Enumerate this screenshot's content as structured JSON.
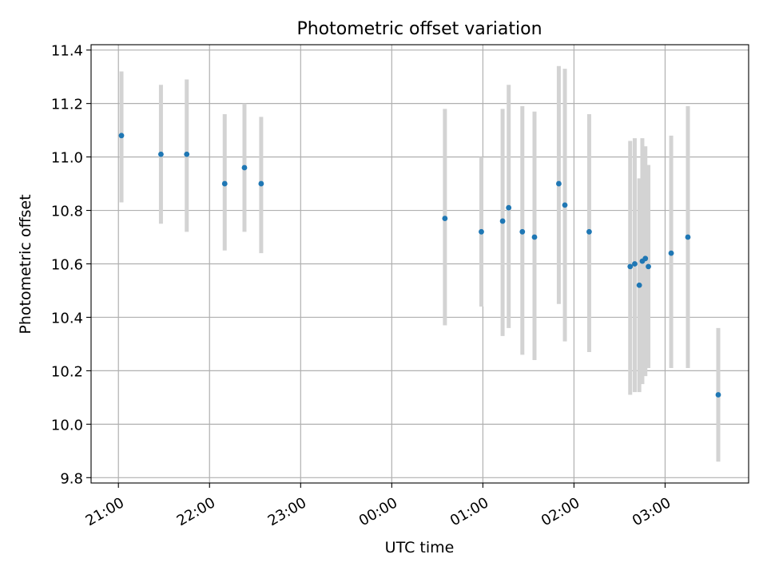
{
  "chart_data": {
    "type": "scatter",
    "title": "Photometric offset variation",
    "xlabel": "UTC time",
    "ylabel": "Photometric offset",
    "x_tick_labels": [
      "21:00",
      "22:00",
      "23:00",
      "00:00",
      "01:00",
      "02:00",
      "03:00"
    ],
    "x_tick_minutes": [
      0,
      60,
      120,
      180,
      240,
      300,
      360
    ],
    "y_ticks": [
      9.8,
      10.0,
      10.2,
      10.4,
      10.6,
      10.8,
      11.0,
      11.2,
      11.4
    ],
    "y_tick_labels": [
      "9.8",
      "10.0",
      "10.2",
      "10.4",
      "10.6",
      "10.8",
      "11.0",
      "11.2",
      "11.4"
    ],
    "xlim_minutes": [
      -18,
      415
    ],
    "ylim": [
      9.78,
      11.42
    ],
    "grid": true,
    "colors": {
      "point": "#1f77b4",
      "errorbar": "#d3d3d3",
      "grid": "#b0b0b0"
    },
    "points": [
      {
        "t": "21:02",
        "m": 2,
        "y": 11.08,
        "lo": 10.83,
        "hi": 11.32
      },
      {
        "t": "21:28",
        "m": 28,
        "y": 11.01,
        "lo": 10.75,
        "hi": 11.27
      },
      {
        "t": "21:45",
        "m": 45,
        "y": 11.01,
        "lo": 10.72,
        "hi": 11.29
      },
      {
        "t": "22:10",
        "m": 70,
        "y": 10.9,
        "lo": 10.65,
        "hi": 11.16
      },
      {
        "t": "22:23",
        "m": 83,
        "y": 10.96,
        "lo": 10.72,
        "hi": 11.2
      },
      {
        "t": "22:34",
        "m": 94,
        "y": 10.9,
        "lo": 10.64,
        "hi": 11.15
      },
      {
        "t": "00:35",
        "m": 215,
        "y": 10.77,
        "lo": 10.37,
        "hi": 11.18
      },
      {
        "t": "00:59",
        "m": 239,
        "y": 10.72,
        "lo": 10.44,
        "hi": 11.0
      },
      {
        "t": "01:13",
        "m": 253,
        "y": 10.76,
        "lo": 10.33,
        "hi": 11.18
      },
      {
        "t": "01:17",
        "m": 257,
        "y": 10.81,
        "lo": 10.36,
        "hi": 11.27
      },
      {
        "t": "01:26",
        "m": 266,
        "y": 10.72,
        "lo": 10.26,
        "hi": 11.19
      },
      {
        "t": "01:34",
        "m": 274,
        "y": 10.7,
        "lo": 10.24,
        "hi": 11.17
      },
      {
        "t": "01:50",
        "m": 290,
        "y": 10.9,
        "lo": 10.45,
        "hi": 11.34
      },
      {
        "t": "01:54",
        "m": 294,
        "y": 10.82,
        "lo": 10.31,
        "hi": 11.33
      },
      {
        "t": "02:10",
        "m": 310,
        "y": 10.72,
        "lo": 10.27,
        "hi": 11.16
      },
      {
        "t": "02:37",
        "m": 337,
        "y": 10.59,
        "lo": 10.11,
        "hi": 11.06
      },
      {
        "t": "02:40",
        "m": 340,
        "y": 10.6,
        "lo": 10.12,
        "hi": 11.07
      },
      {
        "t": "02:43",
        "m": 343,
        "y": 10.52,
        "lo": 10.12,
        "hi": 10.92
      },
      {
        "t": "02:45",
        "m": 345,
        "y": 10.61,
        "lo": 10.15,
        "hi": 11.07
      },
      {
        "t": "02:47",
        "m": 347,
        "y": 10.62,
        "lo": 10.18,
        "hi": 11.04
      },
      {
        "t": "02:49",
        "m": 349,
        "y": 10.59,
        "lo": 10.21,
        "hi": 10.97
      },
      {
        "t": "03:04",
        "m": 364,
        "y": 10.64,
        "lo": 10.21,
        "hi": 11.08
      },
      {
        "t": "03:15",
        "m": 375,
        "y": 10.7,
        "lo": 10.21,
        "hi": 11.19
      },
      {
        "t": "03:35",
        "m": 395,
        "y": 10.11,
        "lo": 9.86,
        "hi": 10.36
      }
    ]
  }
}
